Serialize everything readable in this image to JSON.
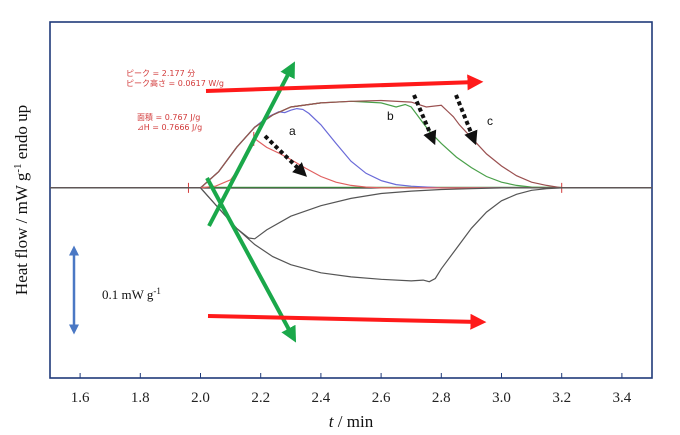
{
  "chart_data": {
    "type": "line",
    "xlabel_italic": "t",
    "xlabel_rest": " / min",
    "ylabel_main": "Heat flow / mW g",
    "ylabel_exp": "-1",
    "ylabel_tail": " endo up",
    "xlim": [
      1.5,
      3.5
    ],
    "ylim": [
      -0.235,
      0.205
    ],
    "xticks": [
      1.6,
      1.8,
      2.0,
      2.2,
      2.4,
      2.6,
      2.8,
      3.0,
      3.2,
      3.4
    ],
    "xtick_labels": [
      "1.6",
      "1.8",
      "2.0",
      "2.2",
      "2.4",
      "2.6",
      "2.8",
      "3.0",
      "3.2",
      "3.4"
    ],
    "grid": false,
    "annotations": {
      "peak_time": "ピーク = 2.177 分",
      "peak_height": "ピーク高さ = 0.0617 W/g",
      "area": "面積 = 0.767 J/g",
      "dh": "⊿H = 0.7666 J/g"
    },
    "curve_labels": [
      "a",
      "b",
      "c"
    ],
    "scale_bar": {
      "text": "0.1 mW g",
      "exp": "-1",
      "value": 0.1
    },
    "colors": {
      "a": "#e06060",
      "blue": "#6a6ad8",
      "b": "#4aa04a",
      "c": "#9a5050",
      "upper": "#555555",
      "lower": "#555555",
      "arrow_red": "#ff1a1a",
      "arrow_green": "#1aa84a",
      "scale_bar": "#4a78c4",
      "frame": "#1f3a7a"
    },
    "series": [
      {
        "name": "a",
        "x": [
          1.5,
          2.0,
          2.05,
          2.1,
          2.14,
          2.16,
          2.177,
          2.19,
          2.22,
          2.26,
          2.3,
          2.35,
          2.4,
          2.45,
          2.5,
          2.55,
          2.6,
          3.5
        ],
        "y": [
          0.0,
          0.0,
          0.002,
          0.01,
          0.03,
          0.05,
          0.0617,
          0.058,
          0.05,
          0.043,
          0.035,
          0.024,
          0.014,
          0.007,
          0.003,
          0.001,
          0.0,
          0.0
        ]
      },
      {
        "name": "",
        "x": [
          1.5,
          2.0,
          2.06,
          2.12,
          2.18,
          2.22,
          2.26,
          2.28,
          2.3,
          2.32,
          2.34,
          2.36,
          2.4,
          2.45,
          2.5,
          2.55,
          2.6,
          2.65,
          2.7,
          2.8,
          3.5
        ],
        "y": [
          0.0,
          0.0,
          0.02,
          0.05,
          0.075,
          0.087,
          0.094,
          0.093,
          0.096,
          0.098,
          0.097,
          0.092,
          0.078,
          0.055,
          0.033,
          0.018,
          0.009,
          0.004,
          0.002,
          0.0,
          0.0
        ]
      },
      {
        "name": "b",
        "x": [
          1.5,
          2.0,
          2.06,
          2.12,
          2.18,
          2.24,
          2.3,
          2.4,
          2.5,
          2.6,
          2.65,
          2.68,
          2.7,
          2.72,
          2.74,
          2.76,
          2.8,
          2.85,
          2.9,
          2.95,
          3.0,
          3.05,
          3.1,
          3.2,
          3.5
        ],
        "y": [
          0.0,
          0.0,
          0.02,
          0.05,
          0.075,
          0.09,
          0.1,
          0.105,
          0.107,
          0.105,
          0.1,
          0.103,
          0.1,
          0.09,
          0.08,
          0.07,
          0.055,
          0.038,
          0.025,
          0.014,
          0.007,
          0.003,
          0.001,
          0.0,
          0.0
        ]
      },
      {
        "name": "c",
        "x": [
          1.5,
          2.0,
          2.06,
          2.12,
          2.18,
          2.24,
          2.3,
          2.4,
          2.5,
          2.6,
          2.7,
          2.75,
          2.8,
          2.82,
          2.84,
          2.86,
          2.9,
          2.95,
          3.0,
          3.05,
          3.1,
          3.15,
          3.2,
          3.5
        ],
        "y": [
          0.0,
          0.0,
          0.02,
          0.05,
          0.075,
          0.09,
          0.1,
          0.105,
          0.107,
          0.108,
          0.106,
          0.1,
          0.102,
          0.095,
          0.088,
          0.078,
          0.062,
          0.042,
          0.027,
          0.015,
          0.007,
          0.003,
          0.0,
          0.0
        ]
      },
      {
        "name": "",
        "x": [
          1.5,
          2.0,
          2.06,
          2.12,
          2.16,
          2.18,
          2.22,
          2.3,
          2.4,
          2.5,
          2.6,
          2.7,
          2.8,
          2.9,
          3.0,
          3.1,
          3.2,
          3.5
        ],
        "y": [
          0.0,
          0.0,
          -0.025,
          -0.05,
          -0.062,
          -0.063,
          -0.052,
          -0.035,
          -0.022,
          -0.013,
          -0.007,
          -0.004,
          -0.002,
          -0.001,
          0.0,
          0.0,
          0.0,
          0.0
        ]
      },
      {
        "name": "",
        "x": [
          1.5,
          2.0,
          2.06,
          2.12,
          2.18,
          2.24,
          2.3,
          2.4,
          2.5,
          2.6,
          2.7,
          2.74,
          2.76,
          2.78,
          2.8,
          2.85,
          2.9,
          2.95,
          3.0,
          3.05,
          3.1,
          3.15,
          3.2,
          3.5
        ],
        "y": [
          0.0,
          0.0,
          -0.025,
          -0.05,
          -0.07,
          -0.085,
          -0.095,
          -0.105,
          -0.11,
          -0.113,
          -0.115,
          -0.114,
          -0.116,
          -0.112,
          -0.1,
          -0.075,
          -0.05,
          -0.03,
          -0.016,
          -0.008,
          -0.003,
          -0.001,
          0.0,
          0.0
        ]
      }
    ]
  }
}
